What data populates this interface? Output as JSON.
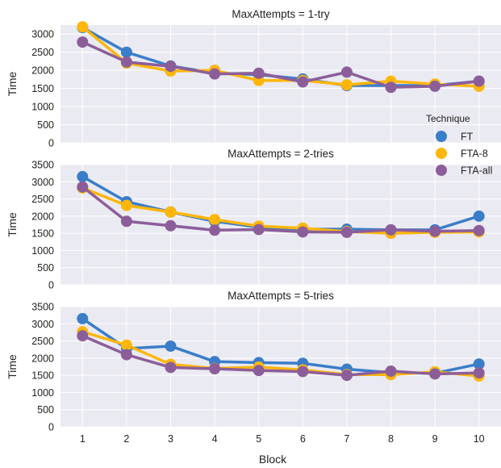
{
  "chart_data": {
    "type": "line",
    "xlabel": "Block",
    "ylabel": "Time",
    "x": [
      1,
      2,
      3,
      4,
      5,
      6,
      7,
      8,
      9,
      10
    ],
    "ylim": [
      0,
      3500
    ],
    "yticks": [
      0,
      500,
      1000,
      1500,
      2000,
      2500,
      3000,
      3500
    ],
    "grid": true,
    "legend": {
      "title": "Technique",
      "placement": "right",
      "entries": [
        "FT",
        "FTA-8",
        "FTA-all"
      ]
    },
    "colors": {
      "FT": "#3a7dc9",
      "FTA-8": "#ffb60a",
      "FTA-all": "#8c5e99",
      "panel_background": "#eaeaf2"
    },
    "panels": [
      {
        "title": "MaxAttempts = 1-try",
        "ylim": [
          0,
          3250
        ],
        "yticks": [
          0,
          500,
          1000,
          1500,
          2000,
          2500,
          3000
        ],
        "series": [
          {
            "name": "FT",
            "values": [
              3180,
              2500,
              2120,
              1920,
              1880,
              1760,
              1580,
              1580,
              1580,
              1700
            ],
            "error": [
              60,
              40,
              40,
              30,
              30,
              30,
              30,
              30,
              30,
              30
            ]
          },
          {
            "name": "FTA-8",
            "values": [
              3200,
              2200,
              1980,
              2000,
              1720,
              1720,
              1600,
              1700,
              1620,
              1560
            ],
            "error": [
              60,
              40,
              40,
              30,
              30,
              30,
              30,
              30,
              30,
              30
            ]
          },
          {
            "name": "FTA-all",
            "values": [
              2780,
              2230,
              2110,
              1900,
              1920,
              1680,
              1950,
              1530,
              1560,
              1700
            ],
            "error": [
              50,
              40,
              40,
              30,
              30,
              30,
              30,
              30,
              30,
              30
            ]
          }
        ]
      },
      {
        "title": "MaxAttempts = 2-tries",
        "ylim": [
          0,
          3500
        ],
        "yticks": [
          0,
          500,
          1000,
          1500,
          2000,
          2500,
          3000,
          3500
        ],
        "series": [
          {
            "name": "FT",
            "values": [
              3150,
              2420,
              2120,
              1850,
              1680,
              1620,
              1620,
              1600,
              1600,
              2000
            ],
            "error": [
              60,
              40,
              40,
              30,
              30,
              30,
              30,
              30,
              30,
              80
            ]
          },
          {
            "name": "FTA-8",
            "values": [
              2820,
              2310,
              2120,
              1900,
              1710,
              1650,
              1550,
              1500,
              1530,
              1540
            ],
            "error": [
              60,
              40,
              40,
              30,
              30,
              30,
              30,
              30,
              30,
              30
            ]
          },
          {
            "name": "FTA-all",
            "values": [
              2850,
              1850,
              1720,
              1590,
              1610,
              1540,
              1530,
              1600,
              1560,
              1580
            ],
            "error": [
              50,
              40,
              40,
              30,
              30,
              30,
              30,
              30,
              30,
              30
            ]
          }
        ]
      },
      {
        "title": "MaxAttempts = 5-tries",
        "ylim": [
          0,
          3500
        ],
        "yticks": [
          0,
          500,
          1000,
          1500,
          2000,
          2500,
          3000,
          3500
        ],
        "series": [
          {
            "name": "FT",
            "values": [
              3150,
              2280,
              2350,
              1900,
              1870,
              1850,
              1680,
              1580,
              1560,
              1830
            ],
            "error": [
              100,
              50,
              90,
              40,
              40,
              40,
              40,
              40,
              40,
              80
            ]
          },
          {
            "name": "FTA-8",
            "values": [
              2770,
              2380,
              1820,
              1700,
              1740,
              1660,
              1520,
              1520,
              1600,
              1480
            ],
            "error": [
              60,
              40,
              40,
              30,
              30,
              30,
              30,
              30,
              30,
              30
            ]
          },
          {
            "name": "FTA-all",
            "values": [
              2650,
              2100,
              1730,
              1690,
              1640,
              1610,
              1500,
              1620,
              1540,
              1570
            ],
            "error": [
              50,
              40,
              40,
              30,
              30,
              30,
              30,
              30,
              30,
              30
            ]
          }
        ]
      }
    ]
  }
}
